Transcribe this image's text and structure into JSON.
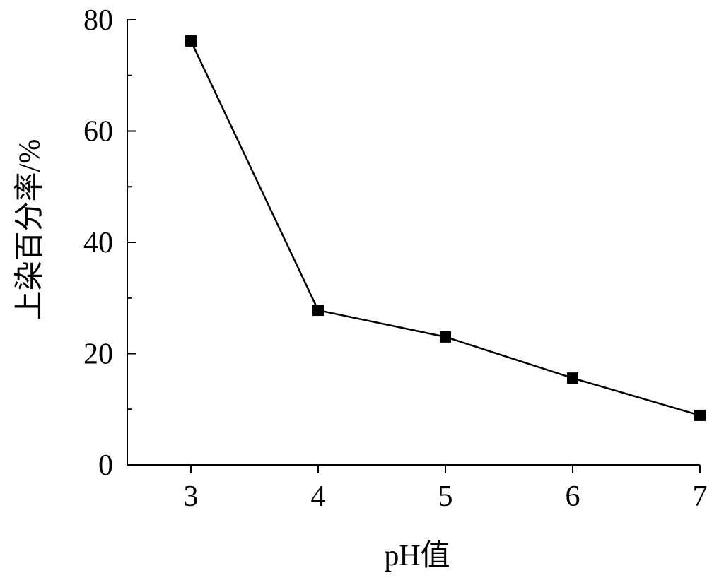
{
  "chart_data": {
    "type": "line",
    "x_label": "pH值",
    "y_label": "上染百分率/%",
    "x": [
      3,
      4,
      5,
      6,
      7
    ],
    "series": [
      {
        "color": "#000000",
        "values": [
          76.2,
          27.8,
          23.0,
          15.6,
          8.9
        ]
      }
    ],
    "xlim": [
      2.5,
      7
    ],
    "xticks": [
      3,
      4,
      5,
      6,
      7
    ],
    "ylim": [
      0,
      80
    ],
    "yticks": [
      0,
      20,
      40,
      60,
      80
    ],
    "yminor_ticks": [
      10,
      30,
      50,
      70
    ],
    "grid": false
  }
}
